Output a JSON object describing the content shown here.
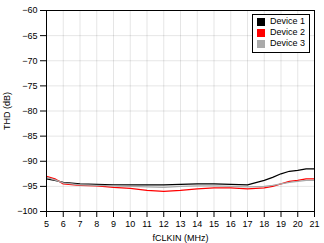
{
  "chart_data": {
    "type": "line",
    "xlabel": "fCLKIN (MHz)",
    "ylabel": "THD (dB)",
    "x": [
      5,
      5.5,
      6,
      7,
      8,
      9,
      10,
      11,
      12,
      13,
      14,
      15,
      16,
      17,
      18,
      18.5,
      19,
      19.5,
      20,
      20.5,
      21
    ],
    "series": [
      {
        "name": "Device 1",
        "color": "#000000",
        "values": [
          -93.5,
          -93.8,
          -94.2,
          -94.5,
          -94.6,
          -94.7,
          -94.7,
          -94.7,
          -94.7,
          -94.6,
          -94.5,
          -94.5,
          -94.6,
          -94.7,
          -93.8,
          -93.2,
          -92.5,
          -92.0,
          -91.8,
          -91.5,
          -91.5
        ]
      },
      {
        "name": "Device 2",
        "color": "#ff0000",
        "values": [
          -93.0,
          -93.5,
          -94.5,
          -94.8,
          -94.9,
          -95.2,
          -95.4,
          -95.8,
          -96.0,
          -95.8,
          -95.5,
          -95.3,
          -95.3,
          -95.5,
          -95.3,
          -95.0,
          -94.5,
          -94.0,
          -93.8,
          -93.5,
          -93.5
        ]
      },
      {
        "name": "Device 3",
        "color": "#aaaaaa",
        "values": [
          -93.2,
          -93.7,
          -94.3,
          -94.7,
          -94.8,
          -94.9,
          -95.0,
          -95.1,
          -95.2,
          -95.0,
          -94.9,
          -94.9,
          -95.0,
          -95.1,
          -95.0,
          -94.8,
          -94.5,
          -94.2,
          -94.0,
          -93.8,
          -93.8
        ]
      }
    ],
    "xlim": [
      5,
      21
    ],
    "ylim": [
      -100,
      -60
    ],
    "xticks": [
      5,
      6,
      7,
      8,
      9,
      10,
      11,
      12,
      13,
      14,
      15,
      16,
      17,
      18,
      19,
      20,
      21
    ],
    "yticks": [
      -100,
      -95,
      -90,
      -85,
      -80,
      -75,
      -70,
      -65,
      -60
    ],
    "grid": true,
    "legend": "upper right"
  }
}
